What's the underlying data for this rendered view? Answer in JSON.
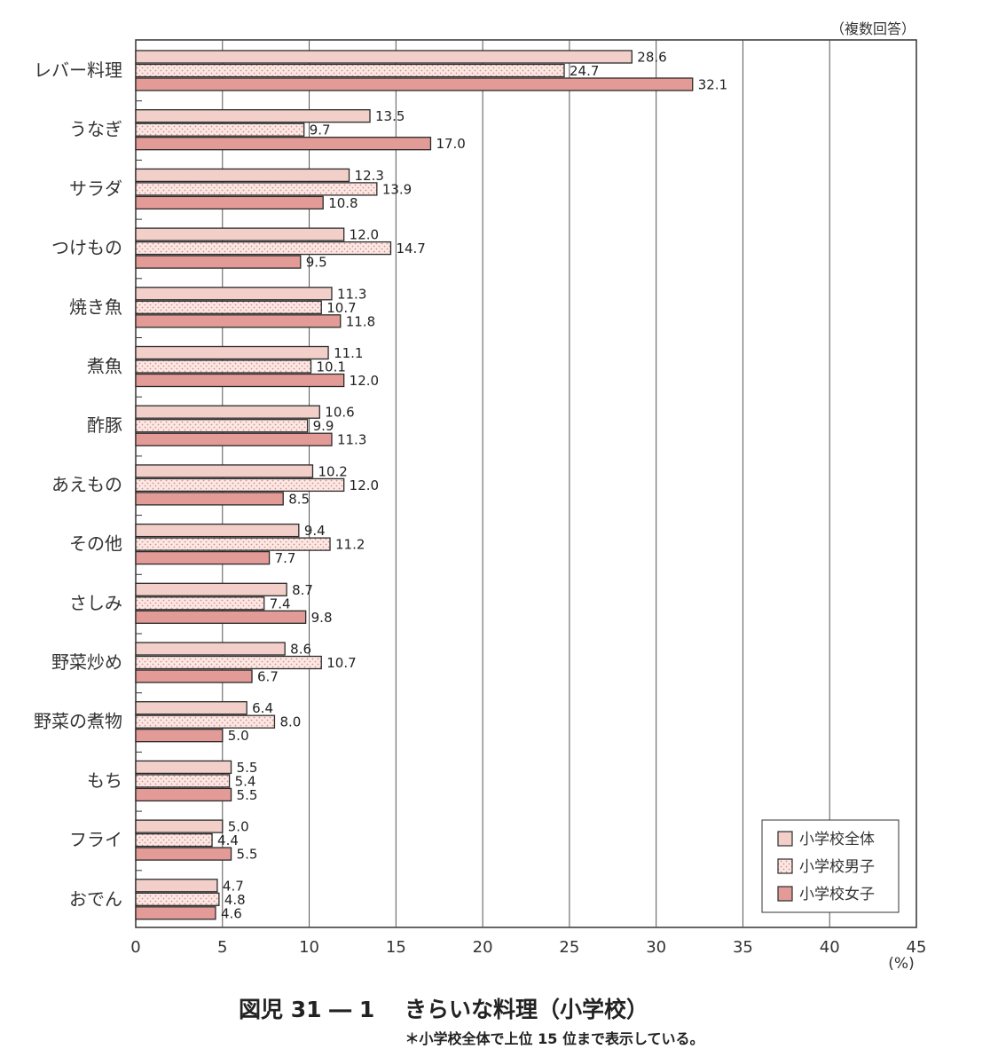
{
  "chart_data": {
    "type": "bar",
    "orientation": "horizontal",
    "note_top_right": "（複数回答）",
    "categories": [
      "レバー料理",
      "うなぎ",
      "サラダ",
      "つけもの",
      "焼き魚",
      "煮魚",
      "酢豚",
      "あえもの",
      "その他",
      "さしみ",
      "野菜炒め",
      "野菜の煮物",
      "もち",
      "フライ",
      "おでん"
    ],
    "series": [
      {
        "name": "小学校全体",
        "fill": "#f2cfc9",
        "pattern": "solid",
        "values": [
          28.6,
          13.5,
          12.3,
          12.0,
          11.3,
          11.1,
          10.6,
          10.2,
          9.4,
          8.7,
          8.6,
          6.4,
          5.5,
          5.0,
          4.7
        ]
      },
      {
        "name": "小学校男子",
        "fill": "#fbe8e4",
        "pattern": "dots",
        "values": [
          24.7,
          9.7,
          13.9,
          14.7,
          10.7,
          10.1,
          9.9,
          12.0,
          11.2,
          7.4,
          10.7,
          8.0,
          5.4,
          4.4,
          4.8
        ]
      },
      {
        "name": "小学校女子",
        "fill": "#e39b97",
        "pattern": "solid",
        "values": [
          32.1,
          17.0,
          10.8,
          9.5,
          11.8,
          12.0,
          11.3,
          8.5,
          7.7,
          9.8,
          6.7,
          5.0,
          5.5,
          5.5,
          4.6
        ]
      }
    ],
    "xlim": [
      0,
      45
    ],
    "xticks": [
      "0",
      "5",
      "10",
      "15",
      "20",
      "25",
      "30",
      "35",
      "40",
      "45"
    ],
    "xlabel": "(%)",
    "legend_position": "bottom-right",
    "title": "図児 31 ― 1　 きらいな料理（小学校）",
    "subtitle": "＊小学校全体で上位 15 位まで表示している。"
  }
}
